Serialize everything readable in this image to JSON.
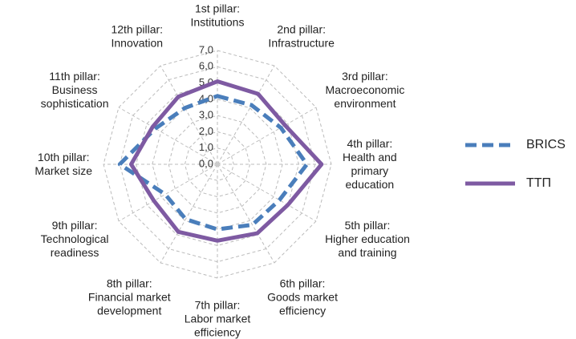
{
  "chart_data": {
    "type": "radar",
    "categories": [
      "1st pillar:\nInstitutions",
      "2nd pillar:\nInfrastructure",
      "3rd pillar:\nMacroeconomic\nenvironment",
      "4th pillar:\nHealth and\nprimary\neducation",
      "5th pillar:\nHigher education\nand training",
      "6th pillar:\nGoods market\nefficiency",
      "7th pillar:\nLabor market\nefficiency",
      "8th pillar:\nFinancial market\ndevelopment",
      "9th pillar:\nTechnological\nreadiness",
      "10th pillar:\nMarket size",
      "11th pillar:\nBusiness\nsophistication",
      "12th pillar:\nInnovation"
    ],
    "series": [
      {
        "name": "BRICS",
        "color": "#4a7ebb",
        "dashed": true,
        "values": [
          4.2,
          4.2,
          4.5,
          5.5,
          4.4,
          4.3,
          4.0,
          3.9,
          3.7,
          6.0,
          4.4,
          4.0
        ]
      },
      {
        "name": "ТТП",
        "color": "#7e5aa2",
        "dashed": false,
        "values": [
          5.1,
          5.0,
          4.8,
          6.4,
          5.0,
          4.9,
          4.7,
          4.8,
          4.5,
          5.3,
          4.6,
          4.8
        ]
      }
    ],
    "ylim": [
      0,
      7
    ],
    "yticks": [
      {
        "value": 0,
        "label": "0,0"
      },
      {
        "value": 1,
        "label": "1,0"
      },
      {
        "value": 2,
        "label": "2,0"
      },
      {
        "value": 3,
        "label": "3,0"
      },
      {
        "value": 4,
        "label": "4,0"
      },
      {
        "value": 5,
        "label": "5,0"
      },
      {
        "value": 6,
        "label": "6,0"
      },
      {
        "value": 7,
        "label": "7,0"
      }
    ],
    "grid": true,
    "legend": "right"
  }
}
